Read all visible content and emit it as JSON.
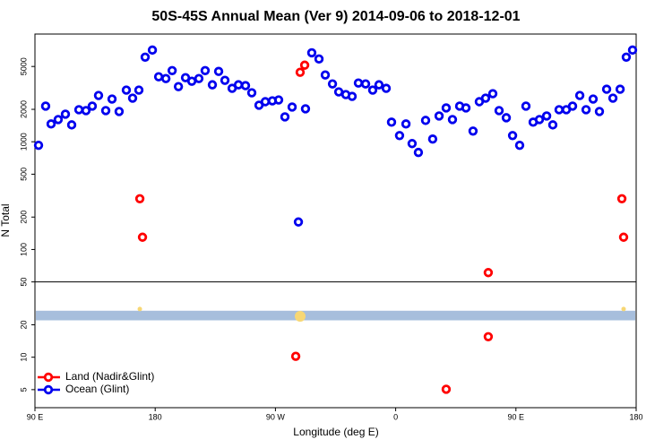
{
  "chart_data": {
    "type": "scatter",
    "title": "50S-45S Annual Mean (Ver 9)   2014-09-06 to 2018-12-01",
    "x_label": "Longitude (deg E)",
    "y_label": "N Total",
    "xlim": [
      90,
      540
    ],
    "xticks": [
      {
        "value": 90,
        "label": "90 E"
      },
      180,
      {
        "value": 270,
        "label": "90 W"
      },
      {
        "value": 360,
        "label": "0"
      },
      {
        "value": 450,
        "label": "90 E"
      },
      {
        "value": 540,
        "label": "180"
      }
    ],
    "ylim": [
      3.4,
      10000
    ],
    "log_y": true,
    "yticks": [
      5,
      10,
      20,
      50,
      100,
      200,
      500,
      1000,
      2000,
      5000
    ],
    "separator": 50,
    "band": {
      "range": [
        22,
        27
      ],
      "color": "#a7bedc"
    },
    "highlights": {
      "color": "#f7d774",
      "x": [
        168.5,
        288.5,
        530.6
      ],
      "values": [
        28,
        24,
        28
      ]
    },
    "legend": "bottom-left",
    "series": [
      {
        "name": "Land (Nadir&Glint)",
        "color": "#ff0000",
        "x": [
          168.5,
          170.5,
          288.5,
          291.9,
          285.2,
          397.8,
          429.3,
          429.3,
          529.3,
          530.6
        ],
        "values": [
          296,
          130,
          4414,
          5140,
          10.2,
          5.04,
          61,
          15.5,
          296,
          130
        ]
      },
      {
        "name": "Ocean (Glint)",
        "color": "#0000ee",
        "x": [
          92.7,
          98.0,
          102.1,
          107.4,
          112.8,
          117.5,
          122.9,
          128.2,
          132.9,
          137.6,
          143.0,
          147.7,
          153.0,
          158.4,
          163.1,
          167.8,
          172.5,
          177.9,
          182.6,
          188.0,
          192.7,
          197.4,
          202.7,
          207.4,
          212.7,
          217.4,
          222.8,
          227.5,
          232.2,
          237.6,
          242.3,
          247.6,
          252.3,
          257.7,
          262.4,
          267.7,
          272.4,
          277.1,
          282.5,
          287.2,
          292.5,
          297.2,
          302.6,
          307.3,
          312.7,
          317.4,
          322.7,
          327.4,
          332.1,
          337.5,
          342.8,
          347.5,
          352.9,
          356.9,
          362.9,
          367.7,
          372.3,
          377.0,
          382.4,
          387.7,
          392.5,
          397.8,
          402.5,
          407.9,
          412.6,
          417.9,
          422.6,
          427.3,
          432.7,
          437.4,
          442.8,
          447.5,
          452.8,
          457.5,
          462.9,
          467.6,
          473.0,
          477.6,
          482.3,
          487.7,
          492.4,
          497.8,
          502.5,
          507.8,
          512.5,
          517.9,
          522.6,
          528.0,
          532.6,
          537.3
        ],
        "values": [
          927,
          2142,
          1463,
          1609,
          1804,
          1435,
          1984,
          1946,
          2142,
          2690,
          1946,
          2493,
          1910,
          3016,
          2540,
          3016,
          6100,
          7100,
          4010,
          3860,
          4580,
          3252,
          3935,
          3648,
          3860,
          4580,
          3380,
          4497,
          3717,
          3133,
          3380,
          3318,
          2850,
          2183,
          2355,
          2400,
          2445,
          1703,
          2100,
          180,
          2023,
          6700,
          5870,
          4170,
          3445,
          2904,
          2742,
          2637,
          3510,
          3445,
          3016,
          3380,
          3133,
          1520,
          1142,
          1463,
          962,
          796,
          1579,
          1059,
          1737,
          2061,
          1609,
          2142,
          2061,
          1257,
          2355,
          2540,
          2793,
          1946,
          1672,
          1142,
          927,
          2142,
          1520,
          1609,
          1737,
          1435,
          1984,
          1984,
          2142,
          2690,
          1984,
          2493,
          1910,
          3074,
          2540,
          3074,
          6100,
          7100
        ]
      }
    ]
  }
}
